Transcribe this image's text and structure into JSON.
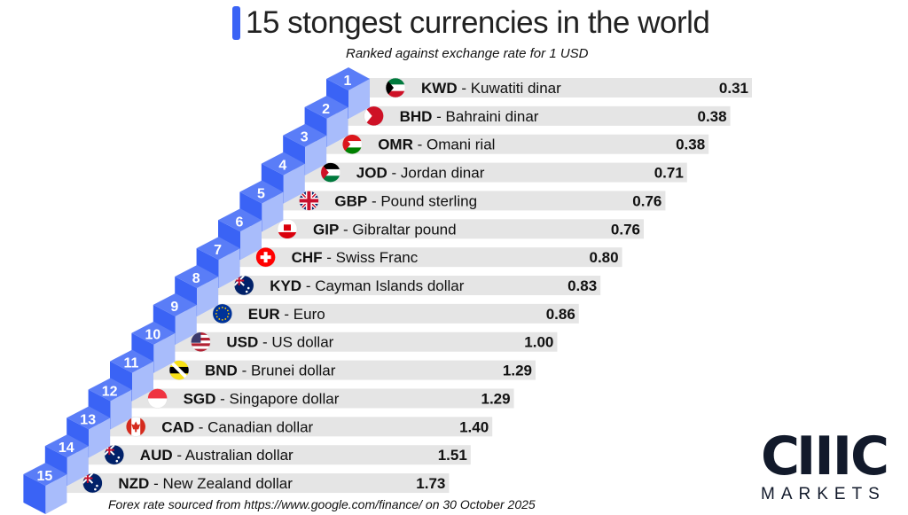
{
  "chart_data": {
    "type": "bar",
    "title": "15 stongest currencies in the world",
    "subtitle": "Ranked against exchange rate for 1 USD",
    "footer": "Forex rate sourced from https://www.google.com/finance/  on 30 October 2025",
    "rows": [
      {
        "rank": "1",
        "code": "KWD",
        "name": " - Kuwatiti dinar",
        "value": "0.31",
        "flag": "kuwait-flag"
      },
      {
        "rank": "2",
        "code": "BHD",
        "name": " - Bahraini dinar",
        "value": "0.38",
        "flag": "bahrain-flag"
      },
      {
        "rank": "3",
        "code": "OMR",
        "name": " - Omani rial",
        "value": "0.38",
        "flag": "oman-flag"
      },
      {
        "rank": "4",
        "code": "JOD",
        "name": " - Jordan dinar",
        "value": "0.71",
        "flag": "jordan-flag"
      },
      {
        "rank": "5",
        "code": "GBP",
        "name": " - Pound sterling",
        "value": "0.76",
        "flag": "uk-flag"
      },
      {
        "rank": "6",
        "code": "GIP",
        "name": " - Gibraltar  pound",
        "value": "0.76",
        "flag": "gibraltar-flag"
      },
      {
        "rank": "7",
        "code": "CHF",
        "name": " - Swiss Franc",
        "value": "0.80",
        "flag": "switzerland-flag"
      },
      {
        "rank": "8",
        "code": "KYD",
        "name": " - Cayman Islands dollar",
        "value": "0.83",
        "flag": "cayman-islands-flag"
      },
      {
        "rank": "9",
        "code": "EUR",
        "name": " - Euro",
        "value": "0.86",
        "flag": "eu-flag"
      },
      {
        "rank": "10",
        "code": "USD",
        "name": " - US dollar",
        "value": "1.00",
        "flag": "us-flag"
      },
      {
        "rank": "11",
        "code": "BND",
        "name": " - Brunei dollar",
        "value": "1.29",
        "flag": "brunei-flag"
      },
      {
        "rank": "12",
        "code": "SGD",
        "name": " - Singapore dollar",
        "value": "1.29",
        "flag": "singapore-flag"
      },
      {
        "rank": "13",
        "code": "CAD",
        "name": " - Canadian dollar",
        "value": "1.40",
        "flag": "canada-flag"
      },
      {
        "rank": "14",
        "code": "AUD",
        "name": " - Australian dollar",
        "value": "1.51",
        "flag": "australia-flag"
      },
      {
        "rank": "15",
        "code": "NZD",
        "name": " - New Zealand dollar",
        "value": "1.73",
        "flag": "new-zealand-flag"
      }
    ],
    "colors": {
      "step_top": "#5a7df7",
      "step_front": "#3a63f5",
      "step_side": "#a8bcfb",
      "bar": "#e5e5e5",
      "accent": "#3a63f5"
    }
  },
  "logo": {
    "mark": "CIIIC",
    "text": "MARKETS"
  }
}
